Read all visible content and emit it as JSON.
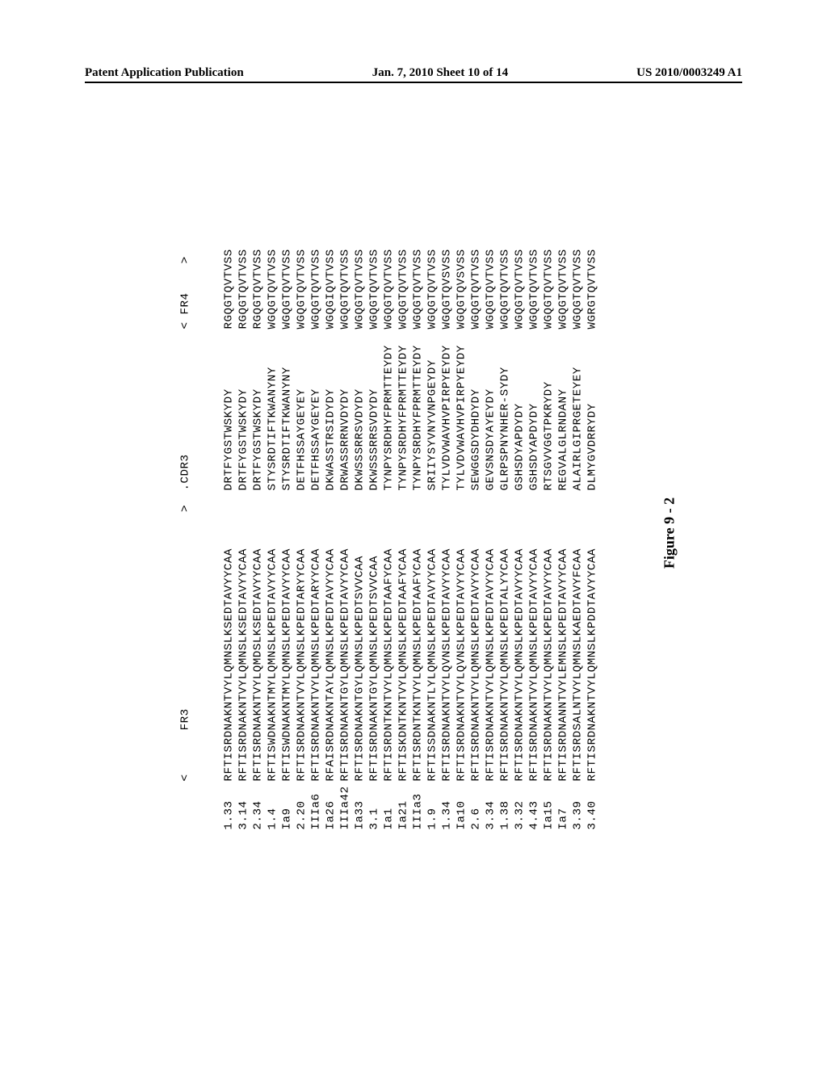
{
  "header": {
    "left": "Patent Application Publication",
    "center": "Jan. 7, 2010  Sheet 10 of 14",
    "right": "US 2010/0003249 A1"
  },
  "table": {
    "header_fr3": "<      FR3                           >",
    "header_cdr3": ".CDR3",
    "header_fr4": "< FR4    >",
    "rows": [
      {
        "id": "1.33",
        "fr3": "RFTISRDNAKNTVYLQMNSLKSEDTAVYYCAA",
        "cdr3": "DRTFYGSTWSKYDY",
        "fr4": "RGQGTQVTVSS"
      },
      {
        "id": "3.14",
        "fr3": "RFTISRDNAKNTVYLQMNSLKSEDTAVYYCAA",
        "cdr3": "DRTFYGSTWSKYDY",
        "fr4": "RGQGTQVTVSS"
      },
      {
        "id": "2.34",
        "fr3": "RFTISRDNAKNTVYLQMDSLKSEDTAVYYCAA",
        "cdr3": "DRTFYGSTWSKYDY",
        "fr4": "RGQGTQVTVSS"
      },
      {
        "id": "1.4",
        "fr3": "RFTISWDNAKNTMYLQMNSLKPEDTAVYYCAA",
        "cdr3": "STYSRDTIFTKWANYNY",
        "fr4": "WGQGTQVTVSS"
      },
      {
        "id": "Ia9",
        "fr3": "RFTISWDNAKNTMYLQMNSLKPEDTAVYYCAA",
        "cdr3": "STYSRDTIFTKWANYNY",
        "fr4": "WGQGTQVTVSS"
      },
      {
        "id": "2.20",
        "fr3": "RFTISRDNAKNTVYLQMNSLKPEDTARYYCAA",
        "cdr3": "DETFHSSAYGEYEY",
        "fr4": "WGQGTQVTVSS"
      },
      {
        "id": "IIIa6",
        "fr3": "RFTISRDNAKNTVYLQMNSLKPEDTARYYCAA",
        "cdr3": "DETFHSSAYGEYEY",
        "fr4": "WGQGTQVTVSS"
      },
      {
        "id": "Ia26",
        "fr3": "RFAISRDNAKNTAYLQMNSLKPEDTAVYYCAA",
        "cdr3": "DKWASSTRSIDYDY",
        "fr4": "WGQGIQVTVSS"
      },
      {
        "id": "IIIa42",
        "fr3": "RFTISRDNAKNTGYLQMNSLKPEDTAVYYCAA",
        "cdr3": "DRWASSRRNVDYDY",
        "fr4": "WGQGTQVTVSS"
      },
      {
        "id": "Ia33",
        "fr3": "RFTISRDNAKNTGYLQMNSLKPEDTSVVCAA",
        "cdr3": "DKWSSSRRSVDYDY",
        "fr4": "WGQGTQVTVSS"
      },
      {
        "id": "3.1",
        "fr3": "RFTISRDNAKNTGYLQMNSLKPEDTSVVCAA",
        "cdr3": "DKWSSSRRSVDYDY",
        "fr4": "WGQGTQVTVSS"
      },
      {
        "id": "Ia1",
        "fr3": "RFTISRDNTKNTVYLQMNSLKPEDTAAFYCAA",
        "cdr3": "TYNPYSRDHYFPRMTTEYDY",
        "fr4": "WGQGTQVTVSS"
      },
      {
        "id": "Ia21",
        "fr3": "RFTISKDNTKNTVYLQMNSLKPEDTAAFYCAA",
        "cdr3": "TYNPYSRDHYFPRMTTEYDY",
        "fr4": "WGQGTQVTVSS"
      },
      {
        "id": "IIIa3",
        "fr3": "RFTISRDNTKNTVYLQMNSLKPEDTAAFYCAA",
        "cdr3": "TYNPYSRDHYFPRMTTEYDY",
        "fr4": "WGQGTQVTVSS"
      },
      {
        "id": "1.9",
        "fr3": "RFTISSDNAKNTLYLQMNSLKPEDTAVYYCAA",
        "cdr3": "SRIIYSYVNYVNPGEYDY",
        "fr4": "WGQGTQVTVSS"
      },
      {
        "id": "1.34",
        "fr3": "RFTISRDNAKNTVYLQVNSLKPEDTAVYYCAA",
        "cdr3": "TYLVDVWAVHVPIRPYEYDY",
        "fr4": "WGQGTQVSVSS"
      },
      {
        "id": "Ia10",
        "fr3": "RFTISRDNAKNTVYLQVNSLKPEDTAVYYCAA",
        "cdr3": "TYLVDVWAVHVPIRPYEYDY",
        "fr4": "WGQGTQVSVSS"
      },
      {
        "id": "2.6",
        "fr3": "RFTISRDNAKNTVYLQMNSLKPEDTAVYYCAA",
        "cdr3": "SEWGGSDYDHDYDY",
        "fr4": "WGQGTQVTVSS"
      },
      {
        "id": "3.34",
        "fr3": "RFTISRDNAKNTVYLQMNSLKPEDTAVYYCAA",
        "cdr3": "GEVSNSDYAYEYDY",
        "fr4": "WGQGTQVTVSS"
      },
      {
        "id": "1.38",
        "fr3": "RFTISRDNAKNTVYLQMNSLKPEDTALYYCAA",
        "cdr3": "GLRPSPNYNHER-SYDY",
        "fr4": "WGQGTQVTVSS"
      },
      {
        "id": "3.32",
        "fr3": "RFTISRDNAKNTVYLQMNSLKPEDTAVYYCAA",
        "cdr3": "GSHSDYAPDYDY",
        "fr4": "WGQGTQVTVSS"
      },
      {
        "id": "4.43",
        "fr3": "RFTISRDNAKNTVYLQMNSLKPEDTAVYYCAA",
        "cdr3": "GSHSDYAPDYDY",
        "fr4": "WGQGTQVTVSS"
      },
      {
        "id": "Ia15",
        "fr3": "RFTISRDNAKNTVYLQMNSLKPEDTAVYYCAA",
        "cdr3": "RTSGVVGGTPKRYDY",
        "fr4": "WGQGTQVTVSS"
      },
      {
        "id": "Ia7",
        "fr3": "RFTISRDNANNTVYLEMNSLKPEDTAVYYCAA",
        "cdr3": "REGVALGLRNDANY",
        "fr4": "WGQGTQVTVSS"
      },
      {
        "id": "3.39",
        "fr3": "RFTISRDSALNTVYLQMNSLKAEDTAVYFCAA",
        "cdr3": "ALAIRLGIPRGETEYEY",
        "fr4": "WGQGTQVTVSS"
      },
      {
        "id": "3.40",
        "fr3": "RFTISRDNAKNTVYLQMNSLKPDDTAVYYCAA",
        "cdr3": "DLMYGVDRRYDY",
        "fr4": "WGRGTQVTVSS"
      }
    ]
  },
  "caption": "Figure 9 - 2",
  "style": {
    "background": "#ffffff",
    "text_color": "#000000",
    "mono_font": "Courier New",
    "serif_font": "Times New Roman",
    "header_fontsize": 15,
    "seq_fontsize": 14.2,
    "caption_fontsize": 18,
    "line_height": 18
  }
}
